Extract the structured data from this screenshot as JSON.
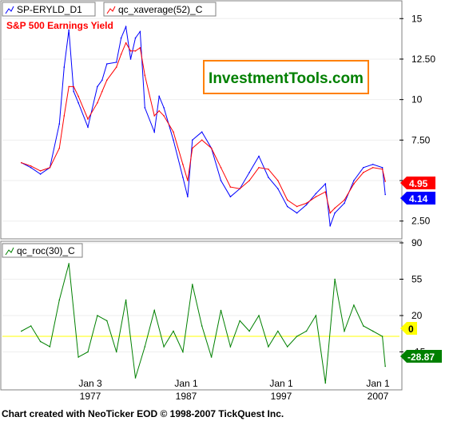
{
  "colors": {
    "price_line": "#0000ff",
    "average_line": "#ff0000",
    "roc_line": "#008000",
    "zero_line": "#ffff00",
    "badge_avg": "#ff0000",
    "badge_price": "#0000ff",
    "badge_roc": "#008000",
    "badge_zero": "#ffff00",
    "subtitle": "#ff0000",
    "logo_text": "#008000",
    "logo_border": "#ff8000"
  },
  "upper_panel": {
    "legend_price": "SP-ERYLD_D1",
    "legend_avg": "qc_xaverage(52)_C",
    "subtitle": "S&P 500 Earnings Yield",
    "logo": "InvestmentTools.com",
    "badge_avg": "4.95",
    "badge_price": "4.14"
  },
  "lower_panel": {
    "legend_roc": "qc_roc(30)_C",
    "badge_zero": "0",
    "badge_roc": "-28.87"
  },
  "x_axis": {
    "ticks": [
      {
        "day": "Jan 3",
        "year": "1977"
      },
      {
        "day": "Jan 1",
        "year": "1987"
      },
      {
        "day": "Jan 1",
        "year": "1997"
      },
      {
        "day": "Jan 1",
        "year": "2007"
      }
    ]
  },
  "credit": "Chart created with NeoTicker EOD © 1998-2007 TickQuest Inc.",
  "chart_data": [
    {
      "type": "line",
      "ylim": [
        1.5,
        16
      ],
      "yticks": [
        "15",
        "12.50",
        "10",
        "7.50",
        "5",
        "2.50"
      ],
      "yticks_values": [
        15,
        12.5,
        10,
        7.5,
        5,
        2.5
      ],
      "x": [
        1970.0,
        1971.0,
        1972.0,
        1973.0,
        1974.0,
        1974.5,
        1975.0,
        1975.5,
        1976.0,
        1977.0,
        1978.0,
        1978.5,
        1979.0,
        1980.0,
        1980.5,
        1981.0,
        1981.5,
        1982.0,
        1982.5,
        1983.0,
        1984.0,
        1984.5,
        1985.0,
        1986.0,
        1987.0,
        1987.5,
        1988.0,
        1989.0,
        1990.0,
        1991.0,
        1992.0,
        1993.0,
        1994.0,
        1995.0,
        1996.0,
        1997.0,
        1998.0,
        1999.0,
        2000.0,
        2001.0,
        2002.0,
        2002.5,
        2003.0,
        2004.0,
        2005.0,
        2006.0,
        2007.0,
        2008.0,
        2008.3
      ],
      "series": [
        {
          "name": "SP-ERYLD_D1",
          "values": [
            6.1,
            5.8,
            5.4,
            5.8,
            8.5,
            12.0,
            14.3,
            10.5,
            9.8,
            8.3,
            10.8,
            11.2,
            12.2,
            12.3,
            13.8,
            14.5,
            12.5,
            13.8,
            14.2,
            9.5,
            8.0,
            10.2,
            9.5,
            7.5,
            5.2,
            4.0,
            7.5,
            8.0,
            7.0,
            5.0,
            4.0,
            4.5,
            5.5,
            6.5,
            5.2,
            4.5,
            3.4,
            3.0,
            3.5,
            4.2,
            4.8,
            2.2,
            3.0,
            3.6,
            5.0,
            5.8,
            6.0,
            5.8,
            4.14
          ]
        },
        {
          "name": "qc_xaverage(52)_C",
          "values": [
            6.1,
            5.9,
            5.6,
            5.8,
            7.0,
            9.0,
            10.8,
            10.8,
            10.2,
            8.8,
            9.8,
            10.5,
            11.2,
            12.0,
            12.8,
            13.5,
            13.0,
            13.0,
            13.2,
            11.5,
            9.0,
            9.3,
            9.0,
            8.0,
            6.0,
            5.0,
            7.0,
            7.5,
            7.0,
            5.8,
            4.6,
            4.5,
            5.0,
            5.8,
            5.7,
            5.0,
            3.8,
            3.4,
            3.6,
            4.0,
            4.3,
            3.0,
            3.3,
            3.8,
            4.8,
            5.5,
            5.8,
            5.7,
            4.95
          ]
        }
      ]
    },
    {
      "type": "line",
      "ylim": [
        -50,
        90
      ],
      "yticks": [
        "90",
        "55",
        "20",
        "-15"
      ],
      "yticks_values": [
        90,
        55,
        20,
        -15
      ],
      "x": [
        1970.0,
        1971.0,
        1972.0,
        1973.0,
        1974.0,
        1975.0,
        1976.0,
        1977.0,
        1978.0,
        1979.0,
        1980.0,
        1981.0,
        1982.0,
        1983.0,
        1984.0,
        1985.0,
        1986.0,
        1987.0,
        1988.0,
        1989.0,
        1990.0,
        1991.0,
        1992.0,
        1993.0,
        1994.0,
        1995.0,
        1996.0,
        1997.0,
        1998.0,
        1999.0,
        2000.0,
        2001.0,
        2002.0,
        2003.0,
        2004.0,
        2005.0,
        2006.0,
        2007.0,
        2008.0,
        2008.3
      ],
      "series": [
        {
          "name": "qc_roc(30)_C",
          "values": [
            5,
            10,
            -5,
            -10,
            35,
            70,
            -20,
            -15,
            20,
            15,
            -15,
            35,
            -40,
            -10,
            25,
            -10,
            5,
            -15,
            50,
            10,
            -20,
            25,
            -10,
            15,
            5,
            20,
            -10,
            5,
            -10,
            0,
            5,
            20,
            -45,
            55,
            5,
            30,
            10,
            5,
            0,
            -28.87
          ]
        }
      ]
    }
  ]
}
